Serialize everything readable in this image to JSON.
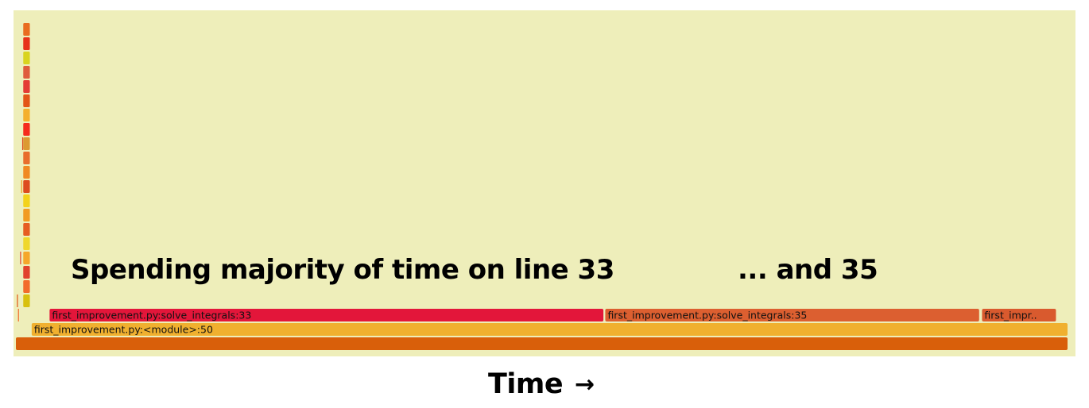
{
  "chart_data": {
    "type": "flamegraph",
    "total_samples": 1000,
    "annotations": {
      "left": "Spending majority of time on line 33",
      "right": "... and 35"
    },
    "x_axis": {
      "label": "Time",
      "arrow": "→"
    },
    "colors": {
      "background": "#eeeeba",
      "root": "#d95f0a",
      "module": "#f0b02f",
      "line33": "#e3163a",
      "line35": "#dc5f30",
      "other": "#d95a2e"
    },
    "frames": [
      {
        "name": "",
        "depth": 0,
        "start": 0,
        "samples": 1000,
        "color": "#d95f0a"
      },
      {
        "name": "first_improvement.py:<module>:50",
        "depth": 1,
        "start": 15,
        "samples": 985,
        "color": "#f0b02f"
      },
      {
        "name": "first_improvement.py:solve_integrals:33",
        "depth": 2,
        "start": 32,
        "samples": 527,
        "color": "#e3163a"
      },
      {
        "name": "first_improvement.py:solve_integrals:35",
        "depth": 2,
        "start": 560,
        "samples": 356,
        "color": "#dc5f30"
      },
      {
        "name": "first_impr..",
        "depth": 2,
        "start": 918,
        "samples": 71,
        "color": "#d95a2e"
      }
    ],
    "stack_column": {
      "start": 7,
      "samples": 7,
      "min_depth": 3,
      "max_depth": 22,
      "colors": [
        "#d8c00e",
        "#f26b2b",
        "#e1422d",
        "#f5a72a",
        "#efd72c",
        "#e65c22",
        "#f19b22",
        "#f3d21a",
        "#dd4b1f",
        "#f08922",
        "#e86d2c",
        "#dc9a32",
        "#f52a1d",
        "#f4b02d",
        "#e35516",
        "#e43c34",
        "#df5b3c",
        "#d9d41f",
        "#e7321a",
        "#e96c20",
        "#f7a025",
        "#e2392f",
        "#f28a32",
        "#d99b2f"
      ]
    }
  }
}
